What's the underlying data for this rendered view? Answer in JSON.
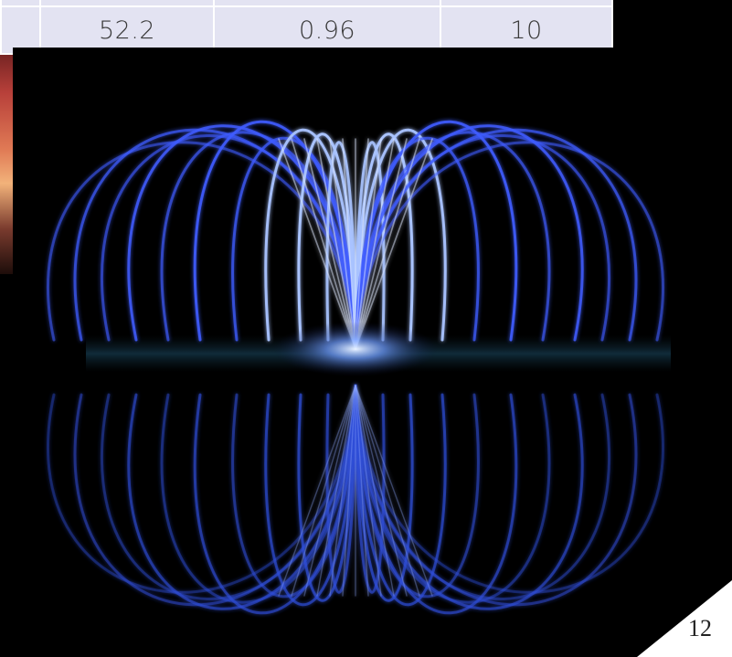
{
  "table": {
    "row": {
      "cells": [
        "",
        "52.2",
        "0.96",
        "10"
      ]
    }
  },
  "photo": {
    "subject": "fountain-photo"
  },
  "footer": {
    "page_number": "12"
  },
  "colors": {
    "table_background": "#e3e3f2",
    "table_text": "#3a3a3a",
    "fountain_blue": "#3b5bff",
    "background": "#000000"
  }
}
